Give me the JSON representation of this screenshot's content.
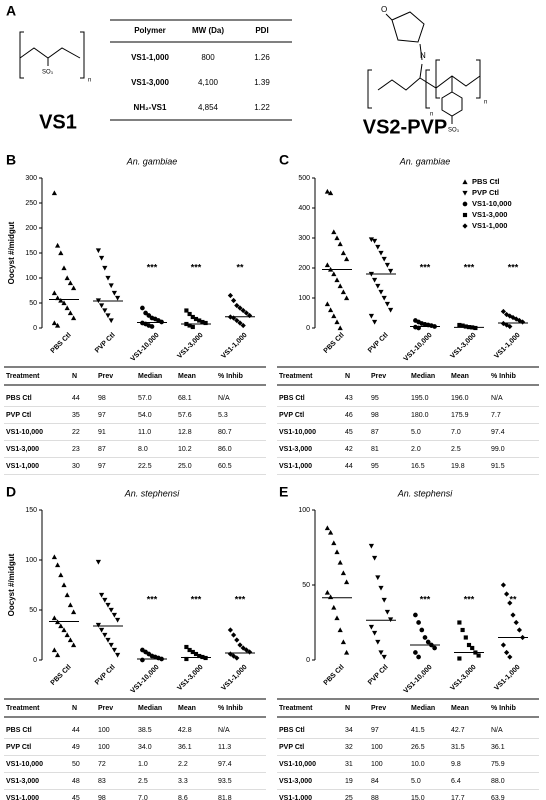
{
  "panel_a": {
    "label": "A",
    "vs1_label": "VS1",
    "vs2_label": "VS2-PVP",
    "structure_texts": {
      "vs1_so3": "SO₃",
      "vs1_n": "n",
      "vs2_o": "O",
      "vs2_n_atom": "N",
      "vs2_n1": "n",
      "vs2_n2": "n",
      "vs2_so3": "SO₃"
    },
    "table": {
      "header": [
        "Polymer",
        "MW (Da)",
        "PDI"
      ],
      "rows": [
        [
          "VS1-1,000",
          "800",
          "1.26"
        ],
        [
          "VS1-3,000",
          "4,100",
          "1.39"
        ],
        [
          "NH₂-VS1",
          "4,854",
          "1.22"
        ]
      ]
    }
  },
  "chart_data": [
    {
      "type": "strip",
      "label": "B",
      "title": "An. gambiae",
      "ylabel": "Oocyst #/midgut",
      "categories": [
        "PBS Ctl",
        "PVP Ctl",
        "VS1-10,000",
        "VS1-3,000",
        "VS1-1,000"
      ],
      "markers": [
        "triangle-up",
        "triangle-down",
        "circle",
        "square",
        "diamond"
      ],
      "values": [
        [
          270,
          165,
          150,
          120,
          100,
          90,
          80,
          70,
          60,
          55,
          50,
          40,
          30,
          20,
          10,
          5
        ],
        [
          155,
          140,
          120,
          100,
          85,
          70,
          60,
          55,
          45,
          35,
          25,
          15
        ],
        [
          40,
          30,
          25,
          20,
          18,
          15,
          12,
          10,
          8,
          5,
          3
        ],
        [
          35,
          28,
          22,
          18,
          15,
          12,
          10,
          8,
          5,
          2
        ],
        [
          65,
          55,
          45,
          40,
          35,
          30,
          25,
          22,
          20,
          15,
          10,
          5
        ]
      ],
      "stars": [
        null,
        null,
        "***",
        "***",
        "**"
      ],
      "ylim": [
        0,
        300
      ],
      "yticks": [
        0,
        50,
        100,
        150,
        200,
        250,
        300
      ],
      "legend": false,
      "table": {
        "header": [
          "Treatment",
          "N",
          "Prev",
          "Median",
          "Mean",
          "% Inhib"
        ],
        "rows": [
          [
            "PBS Ctl",
            "44",
            "98",
            "57.0",
            "68.1",
            "N/A"
          ],
          [
            "PVP Ctl",
            "35",
            "97",
            "54.0",
            "57.6",
            "5.3"
          ],
          [
            "VS1-10,000",
            "22",
            "91",
            "11.0",
            "12.8",
            "80.7"
          ],
          [
            "VS1-3,000",
            "23",
            "87",
            "8.0",
            "10.2",
            "86.0"
          ],
          [
            "VS1-1,000",
            "30",
            "97",
            "22.5",
            "25.0",
            "60.5"
          ]
        ]
      }
    },
    {
      "type": "strip",
      "label": "C",
      "title": "An. gambiae",
      "categories": [
        "PBS Ctl",
        "PVP Ctl",
        "VS1-10,000",
        "VS1-3,000",
        "VS1-1,000"
      ],
      "markers": [
        "triangle-up",
        "triangle-down",
        "circle",
        "square",
        "diamond"
      ],
      "values": [
        [
          455,
          450,
          320,
          300,
          280,
          250,
          230,
          210,
          195,
          180,
          160,
          140,
          120,
          100,
          80,
          60,
          40,
          20,
          0
        ],
        [
          295,
          290,
          270,
          250,
          230,
          210,
          190,
          180,
          160,
          140,
          120,
          100,
          80,
          60,
          40,
          20
        ],
        [
          25,
          20,
          15,
          12,
          10,
          8,
          5,
          3,
          0
        ],
        [
          10,
          8,
          5,
          3,
          2,
          0
        ],
        [
          55,
          45,
          40,
          35,
          30,
          25,
          20,
          15,
          10,
          5
        ]
      ],
      "stars": [
        null,
        null,
        "***",
        "***",
        "***"
      ],
      "ylim": [
        0,
        500
      ],
      "yticks": [
        0,
        100,
        200,
        300,
        400,
        500
      ],
      "legend": true,
      "legend_corner": "upper right",
      "table": {
        "header": [
          "Treatment",
          "N",
          "Prev",
          "Median",
          "Mean",
          "% Inhib"
        ],
        "rows": [
          [
            "PBS Ctl",
            "43",
            "95",
            "195.0",
            "196.0",
            "N/A"
          ],
          [
            "PVP Ctl",
            "46",
            "98",
            "180.0",
            "175.9",
            "7.7"
          ],
          [
            "VS1-10,000",
            "45",
            "87",
            "5.0",
            "7.0",
            "97.4"
          ],
          [
            "VS1-3,000",
            "42",
            "81",
            "2.0",
            "2.5",
            "99.0"
          ],
          [
            "VS1-1,000",
            "44",
            "95",
            "16.5",
            "19.8",
            "91.5"
          ]
        ]
      }
    },
    {
      "type": "strip",
      "label": "D",
      "title": "An. stephensi",
      "ylabel": "Oocyst #/midgut",
      "categories": [
        "PBS Ctl",
        "PVP Ctl",
        "VS1-10,000",
        "VS1-3,000",
        "VS1-1,000"
      ],
      "markers": [
        "triangle-up",
        "triangle-down",
        "circle",
        "square",
        "diamond"
      ],
      "values": [
        [
          103,
          95,
          85,
          75,
          65,
          55,
          48,
          42,
          38,
          34,
          30,
          25,
          20,
          15,
          10,
          5
        ],
        [
          98,
          65,
          60,
          55,
          50,
          45,
          40,
          35,
          30,
          25,
          20,
          15,
          10,
          5
        ],
        [
          10,
          8,
          6,
          4,
          3,
          2,
          1,
          0
        ],
        [
          13,
          10,
          8,
          6,
          4,
          3,
          2,
          1
        ],
        [
          30,
          25,
          20,
          15,
          12,
          10,
          8,
          6,
          4,
          2
        ]
      ],
      "stars": [
        null,
        null,
        "***",
        "***",
        "***"
      ],
      "ylim": [
        0,
        150
      ],
      "yticks": [
        0,
        50,
        100,
        150
      ],
      "legend": false,
      "table": {
        "header": [
          "Treatment",
          "N",
          "Prev",
          "Median",
          "Mean",
          "% Inhib"
        ],
        "rows": [
          [
            "PBS Ctl",
            "44",
            "100",
            "38.5",
            "42.8",
            "N/A"
          ],
          [
            "PVP Ctl",
            "49",
            "100",
            "34.0",
            "36.1",
            "11.3"
          ],
          [
            "VS1-10,000",
            "50",
            "72",
            "1.0",
            "2.2",
            "97.4"
          ],
          [
            "VS1-3,000",
            "48",
            "83",
            "2.5",
            "3.3",
            "93.5"
          ],
          [
            "VS1-1,000",
            "45",
            "98",
            "7.0",
            "8.6",
            "81.8"
          ]
        ]
      }
    },
    {
      "type": "strip",
      "label": "E",
      "title": "An. stephensi",
      "categories": [
        "PBS Ctl",
        "PVP Ctl",
        "VS1-10,000",
        "VS1-3,000",
        "VS1-1,000"
      ],
      "markers": [
        "triangle-up",
        "triangle-down",
        "circle",
        "square",
        "diamond"
      ],
      "values": [
        [
          88,
          85,
          78,
          72,
          65,
          58,
          52,
          45,
          42,
          35,
          28,
          20,
          12,
          5
        ],
        [
          76,
          68,
          55,
          48,
          40,
          32,
          27,
          22,
          18,
          12,
          5,
          2
        ],
        [
          30,
          25,
          20,
          15,
          12,
          10,
          8,
          5,
          2
        ],
        [
          25,
          20,
          15,
          10,
          8,
          5,
          3,
          1
        ],
        [
          50,
          44,
          38,
          30,
          25,
          20,
          15,
          10,
          5,
          2
        ]
      ],
      "stars": [
        null,
        null,
        "***",
        "***",
        "**"
      ],
      "ylim": [
        0,
        100
      ],
      "yticks": [
        0,
        50,
        100
      ],
      "legend": false,
      "table": {
        "header": [
          "Treatment",
          "N",
          "Prev",
          "Median",
          "Mean",
          "% Inhib"
        ],
        "rows": [
          [
            "PBS Ctl",
            "34",
            "97",
            "41.5",
            "42.7",
            "N/A"
          ],
          [
            "PVP Ctl",
            "32",
            "100",
            "26.5",
            "31.5",
            "36.1"
          ],
          [
            "VS1-10,000",
            "31",
            "100",
            "10.0",
            "9.8",
            "75.9"
          ],
          [
            "VS1-3,000",
            "19",
            "84",
            "5.0",
            "6.4",
            "88.0"
          ],
          [
            "VS1-1,000",
            "25",
            "88",
            "15.0",
            "17.7",
            "63.9"
          ]
        ]
      }
    }
  ]
}
